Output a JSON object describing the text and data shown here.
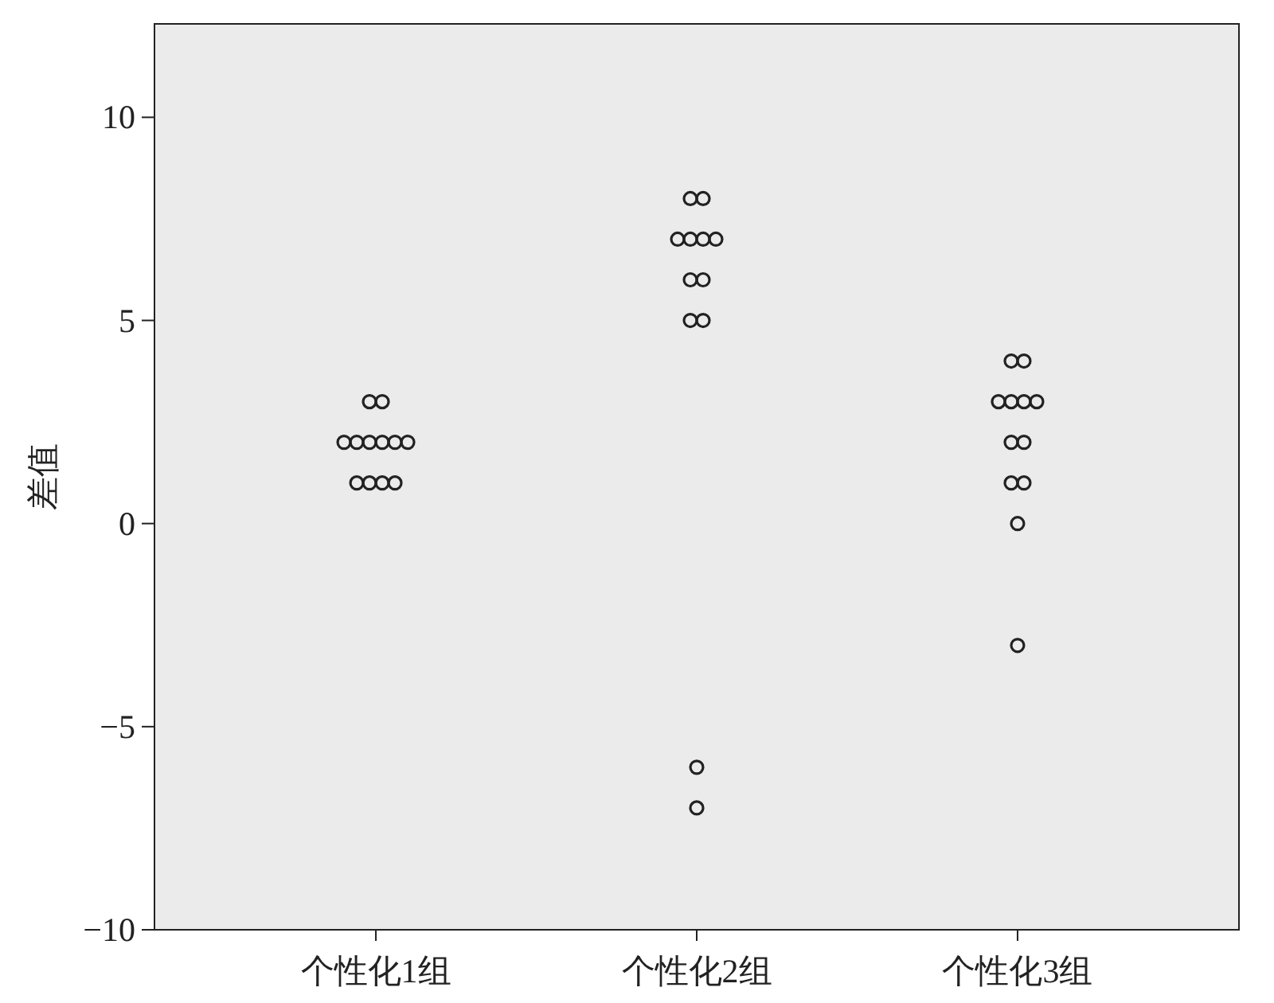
{
  "chart_data": {
    "type": "scatter",
    "ylabel": "差值",
    "categories": [
      "个性化1组",
      "个性化2组",
      "个性化3组"
    ],
    "series": [
      {
        "color": "#222222",
        "x": [
          "个性化1组",
          "个性化1组",
          "个性化1组",
          "个性化1组",
          "个性化1组",
          "个性化1组",
          "个性化1组",
          "个性化1组",
          "个性化1组",
          "个性化1组",
          "个性化1组",
          "个性化1组"
        ],
        "values": [
          3,
          3,
          2,
          2,
          2,
          2,
          2,
          2,
          1,
          1,
          1,
          1
        ]
      },
      {
        "color": "#222222",
        "x": [
          "个性化2组",
          "个性化2组",
          "个性化2组",
          "个性化2组",
          "个性化2组",
          "个性化2组",
          "个性化2组",
          "个性化2组",
          "个性化2组",
          "个性化2组",
          "个性化2组",
          "个性化2组"
        ],
        "values": [
          8,
          8,
          7,
          7,
          7,
          7,
          6,
          6,
          5,
          5,
          -6,
          -7
        ]
      },
      {
        "color": "#222222",
        "x": [
          "个性化3组",
          "个性化3组",
          "个性化3组",
          "个性化3组",
          "个性化3组",
          "个性化3组",
          "个性化3组",
          "个性化3组",
          "个性化3组",
          "个性化3组",
          "个性化3组",
          "个性化3组"
        ],
        "values": [
          4,
          4,
          3,
          3,
          3,
          3,
          2,
          2,
          1,
          1,
          0,
          -3
        ]
      }
    ],
    "marker": "circle",
    "grid": false,
    "ylim": [
      -10,
      12.3
    ],
    "yticks": [
      {
        "value": -10,
        "label": "−10"
      },
      {
        "value": -5,
        "label": "−5"
      },
      0,
      5,
      10
    ]
  }
}
